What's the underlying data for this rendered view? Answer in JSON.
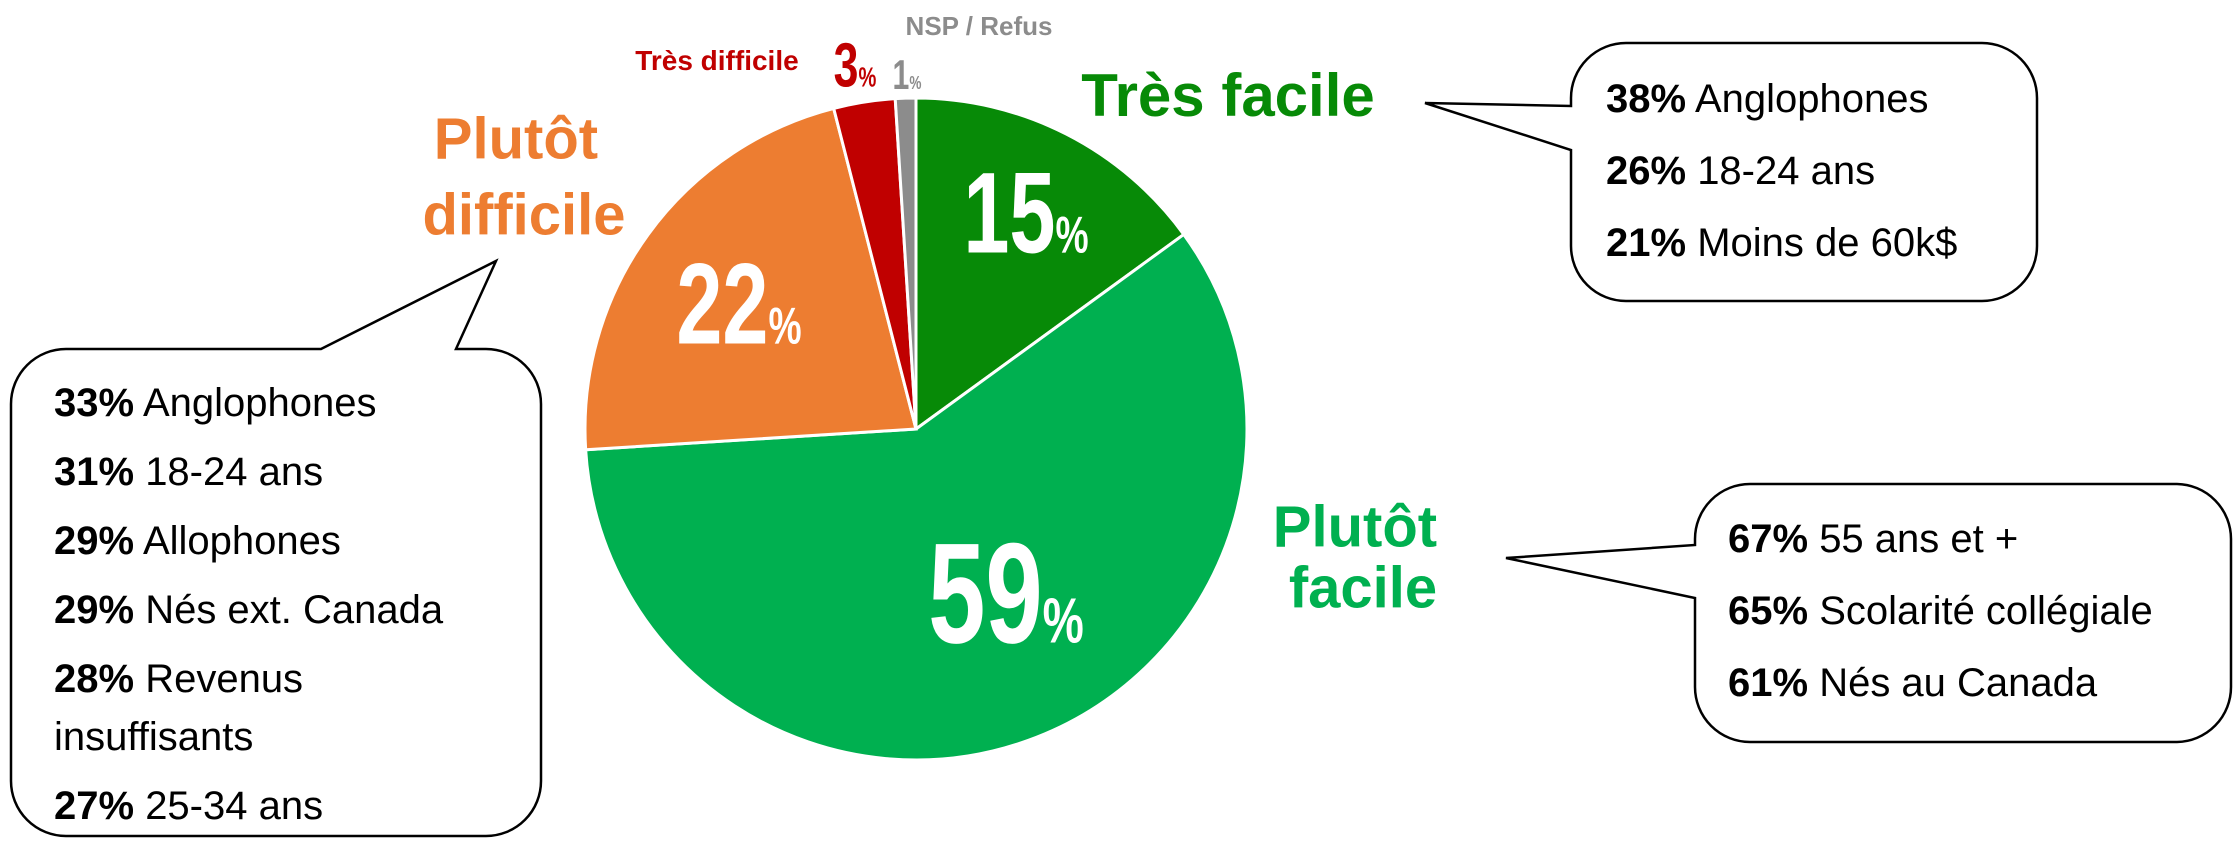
{
  "chart_data": {
    "type": "pie",
    "categories": [
      "Très facile",
      "Plutôt facile",
      "Plutôt difficile",
      "Très difficile",
      "NSP / Refus"
    ],
    "values": [
      15,
      59,
      22,
      3,
      1
    ],
    "value_labels": [
      "15%",
      "59%",
      "22%",
      "3%",
      "1%"
    ],
    "colors": [
      "#078a07",
      "#00b050",
      "#ed7d31",
      "#c00000",
      "#8c8c8c"
    ],
    "annotations": [
      {
        "items": [
          {
            "value": "38%",
            "text": "Anglophones"
          },
          {
            "value": "26%",
            "text": "18-24 ans"
          },
          {
            "value": "21%",
            "text": "Moins de 60k$"
          }
        ]
      },
      {
        "items": [
          {
            "value": "67%",
            "text": "55 ans et +"
          },
          {
            "value": "65%",
            "text": "Scolarité collégiale"
          },
          {
            "value": "61%",
            "text": "Nés au Canada"
          }
        ]
      },
      {
        "items": [
          {
            "value": "33%",
            "text": "Anglophones"
          },
          {
            "value": "31%",
            "text": "18-24 ans"
          },
          {
            "value": "29%",
            "text": "Allophones"
          },
          {
            "value": "29%",
            "text": "Nés ext. Canada"
          },
          {
            "value": "28%",
            "text": "Revenus insuffisants"
          },
          {
            "value": "27%",
            "text": "25-34 ans"
          }
        ]
      }
    ]
  }
}
